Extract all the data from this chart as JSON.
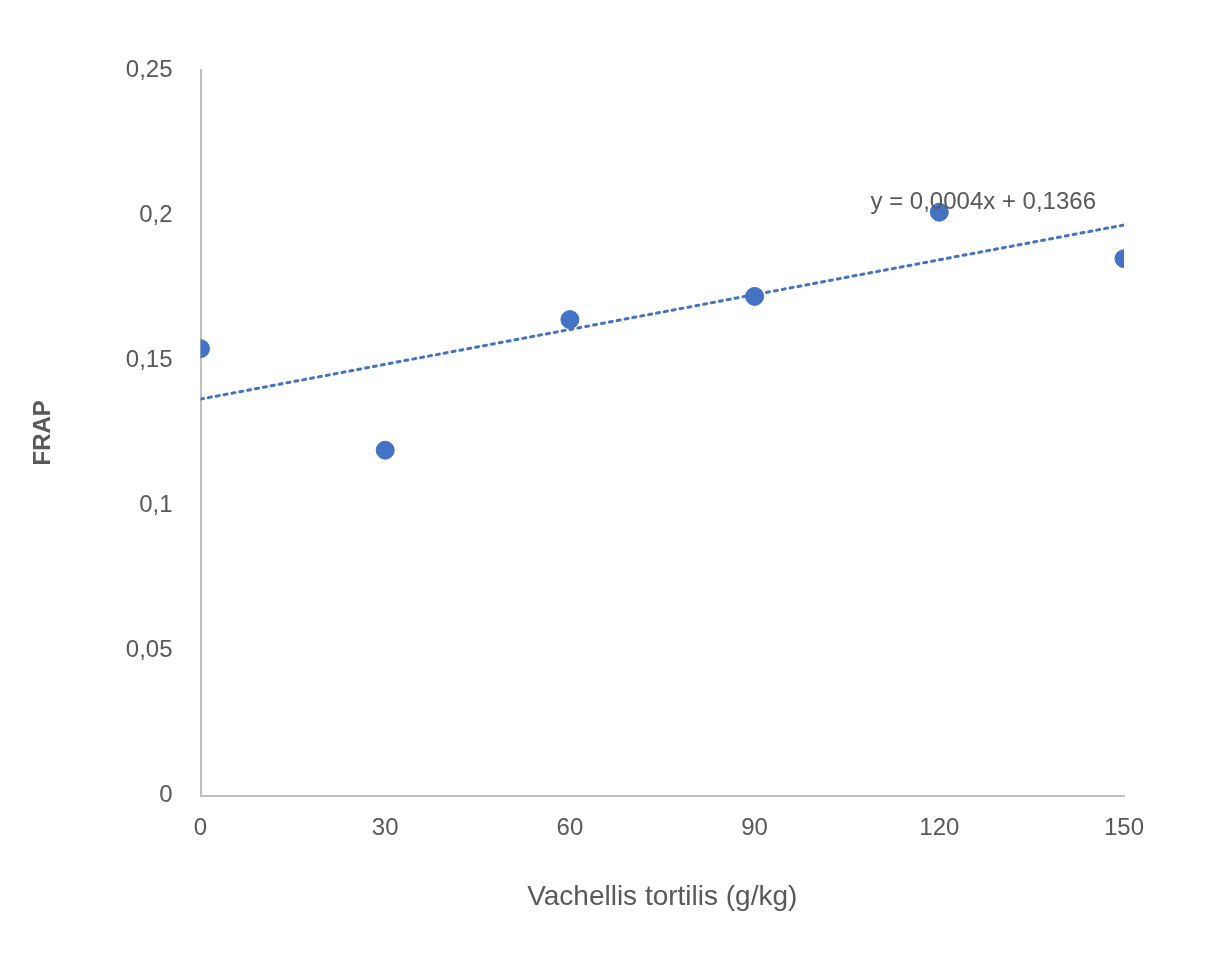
{
  "chart_data": {
    "type": "scatter",
    "xlabel": "Vachellis tortilis (g/kg)",
    "ylabel": "FRAP",
    "series": [
      {
        "type": "scatter",
        "color": "#4472c4",
        "x": [
          0,
          30,
          60,
          90,
          120,
          150
        ],
        "values": [
          0.154,
          0.119,
          0.164,
          0.172,
          0.201,
          0.185
        ],
        "marker": "circle"
      },
      {
        "type": "line",
        "color": "#4472c4",
        "x": [
          0,
          150
        ],
        "values": [
          0.1366,
          0.1966
        ],
        "line_style": "dotted",
        "marker": "none"
      }
    ],
    "xlim": [
      0,
      150
    ],
    "xticks": [
      0,
      30,
      60,
      90,
      120,
      150
    ],
    "ylim": [
      0,
      0.25
    ],
    "yticks": [
      {
        "value": 0,
        "label": "0"
      },
      {
        "value": 0.05,
        "label": "0,05"
      },
      {
        "value": 0.1,
        "label": "0,1"
      },
      {
        "value": 0.15,
        "label": "0,15"
      },
      {
        "value": 0.2,
        "label": "0,2"
      },
      {
        "value": 0.25,
        "label": "0,25"
      }
    ],
    "annotations": [
      "y = 0,0004x + 0,1366"
    ],
    "grid": false,
    "legend": false
  }
}
